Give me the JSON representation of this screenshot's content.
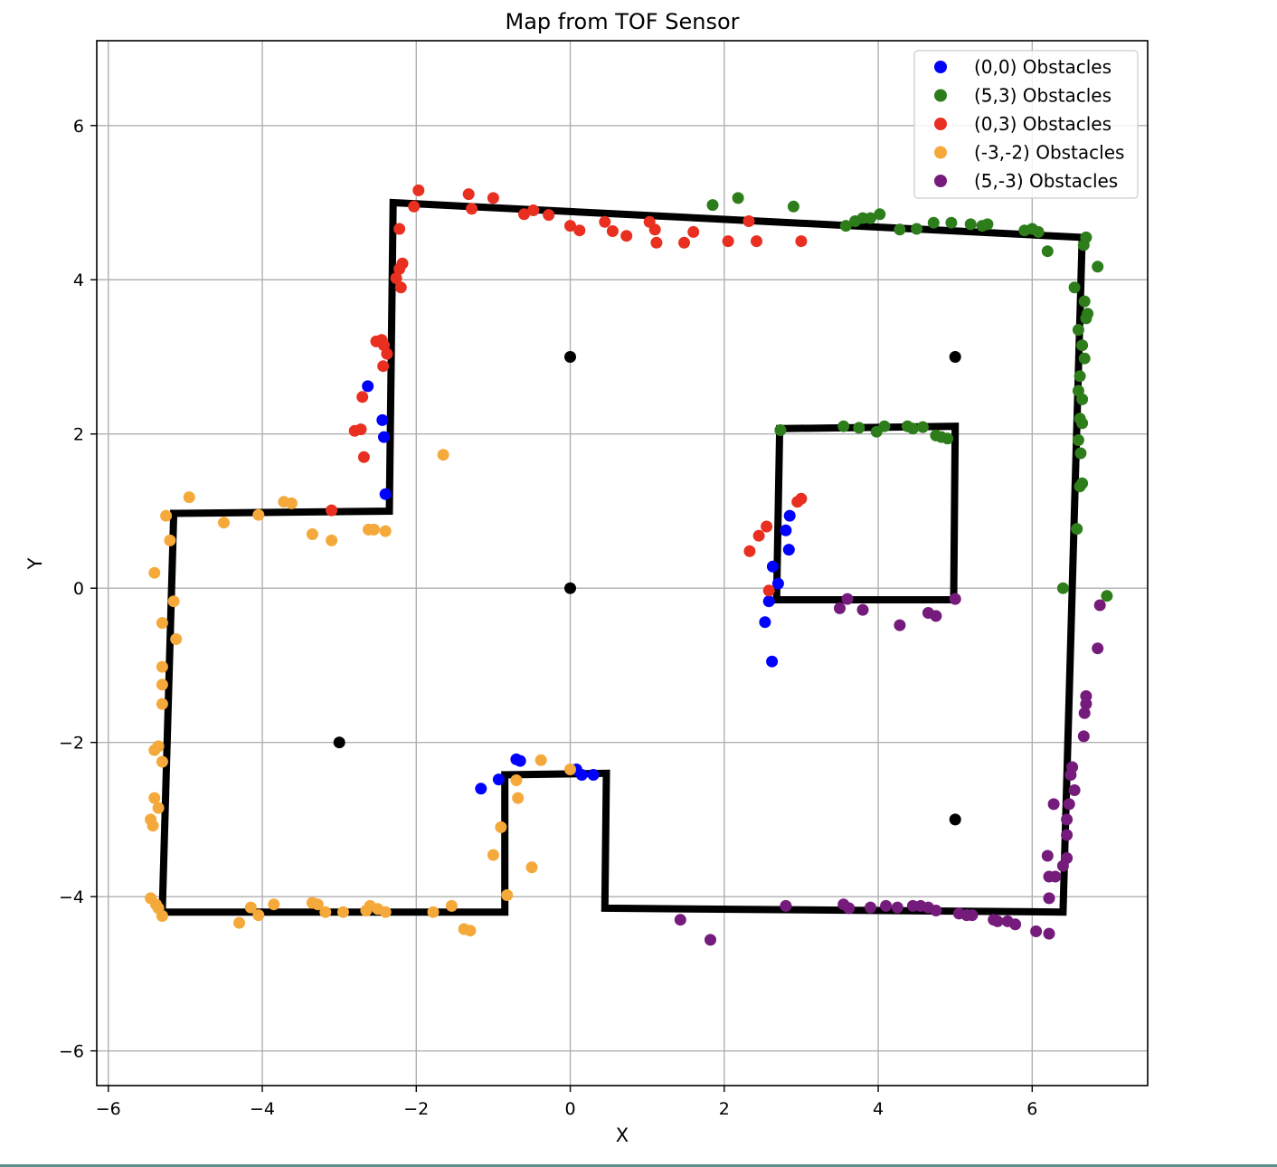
{
  "chart_data": {
    "type": "scatter",
    "title": "Map from TOF Sensor",
    "xlabel": "X",
    "ylabel": "Y",
    "xlim": [
      -6.15,
      7.5
    ],
    "ylim": [
      -6.45,
      7.1
    ],
    "xticks": [
      -6,
      -4,
      -2,
      0,
      2,
      4,
      6
    ],
    "yticks": [
      -6,
      -4,
      -2,
      0,
      2,
      4,
      6
    ],
    "xtick_labels": [
      "−6",
      "−4",
      "−2",
      "0",
      "2",
      "4",
      "6"
    ],
    "ytick_labels": [
      "−6",
      "−4",
      "−2",
      "0",
      "2",
      "4",
      "6"
    ],
    "grid": true,
    "legend_position": "upper-right",
    "series": [
      {
        "name": "(0,0) Obstacles",
        "color": "#0000ff",
        "points": [
          [
            -2.63,
            2.62
          ],
          [
            -2.44,
            2.18
          ],
          [
            -2.42,
            1.96
          ],
          [
            -2.4,
            1.22
          ],
          [
            -1.16,
            -2.6
          ],
          [
            -0.93,
            -2.48
          ],
          [
            -0.7,
            -2.22
          ],
          [
            -0.65,
            -2.24
          ],
          [
            0.08,
            -2.35
          ],
          [
            0.15,
            -2.42
          ],
          [
            0.3,
            -2.42
          ],
          [
            2.53,
            -0.44
          ],
          [
            2.58,
            -0.17
          ],
          [
            2.62,
            -0.95
          ],
          [
            2.63,
            0.28
          ],
          [
            2.8,
            0.75
          ],
          [
            2.84,
            0.5
          ],
          [
            2.85,
            0.94
          ],
          [
            2.7,
            0.06
          ]
        ]
      },
      {
        "name": "(5,3) Obstacles",
        "color": "#2e7d1b",
        "points": [
          [
            1.85,
            4.97
          ],
          [
            2.18,
            5.06
          ],
          [
            2.9,
            4.95
          ],
          [
            3.58,
            4.7
          ],
          [
            3.7,
            4.76
          ],
          [
            3.8,
            4.8
          ],
          [
            3.9,
            4.8
          ],
          [
            4.02,
            4.85
          ],
          [
            4.28,
            4.65
          ],
          [
            4.5,
            4.66
          ],
          [
            4.72,
            4.74
          ],
          [
            4.95,
            4.74
          ],
          [
            5.2,
            4.72
          ],
          [
            5.35,
            4.7
          ],
          [
            5.42,
            4.72
          ],
          [
            5.9,
            4.64
          ],
          [
            6.0,
            4.66
          ],
          [
            6.08,
            4.62
          ],
          [
            6.2,
            4.37
          ],
          [
            6.7,
            4.55
          ],
          [
            6.67,
            4.45
          ],
          [
            6.85,
            4.17
          ],
          [
            6.55,
            3.9
          ],
          [
            6.68,
            3.72
          ],
          [
            6.72,
            3.56
          ],
          [
            6.7,
            3.5
          ],
          [
            6.6,
            3.35
          ],
          [
            6.65,
            3.15
          ],
          [
            6.68,
            2.98
          ],
          [
            6.62,
            2.75
          ],
          [
            6.6,
            2.56
          ],
          [
            6.65,
            2.45
          ],
          [
            6.62,
            2.2
          ],
          [
            6.65,
            2.14
          ],
          [
            6.6,
            1.92
          ],
          [
            6.63,
            1.75
          ],
          [
            6.65,
            1.36
          ],
          [
            6.62,
            1.32
          ],
          [
            6.58,
            0.77
          ],
          [
            6.4,
            0.0
          ],
          [
            6.97,
            -0.1
          ],
          [
            2.73,
            2.05
          ],
          [
            3.55,
            2.1
          ],
          [
            3.75,
            2.08
          ],
          [
            3.98,
            2.03
          ],
          [
            4.08,
            2.1
          ],
          [
            4.38,
            2.1
          ],
          [
            4.45,
            2.07
          ],
          [
            4.58,
            2.09
          ],
          [
            4.75,
            1.98
          ],
          [
            4.82,
            1.96
          ],
          [
            4.9,
            1.94
          ]
        ]
      },
      {
        "name": "(0,3) Obstacles",
        "color": "#e82f20",
        "points": [
          [
            -1.97,
            5.16
          ],
          [
            -2.03,
            4.95
          ],
          [
            -1.32,
            5.11
          ],
          [
            -1.28,
            4.92
          ],
          [
            -1.0,
            5.06
          ],
          [
            -0.6,
            4.85
          ],
          [
            -0.48,
            4.9
          ],
          [
            -0.28,
            4.84
          ],
          [
            0.0,
            4.7
          ],
          [
            0.12,
            4.64
          ],
          [
            0.45,
            4.75
          ],
          [
            0.55,
            4.63
          ],
          [
            0.73,
            4.57
          ],
          [
            1.03,
            4.75
          ],
          [
            1.1,
            4.65
          ],
          [
            1.12,
            4.48
          ],
          [
            1.48,
            4.48
          ],
          [
            1.6,
            4.62
          ],
          [
            2.05,
            4.5
          ],
          [
            2.32,
            4.76
          ],
          [
            2.42,
            4.5
          ],
          [
            3.0,
            4.5
          ],
          [
            -2.22,
            4.66
          ],
          [
            -2.18,
            4.21
          ],
          [
            -2.22,
            4.14
          ],
          [
            -2.26,
            4.02
          ],
          [
            -2.2,
            3.9
          ],
          [
            -2.45,
            3.22
          ],
          [
            -2.52,
            3.2
          ],
          [
            -2.42,
            3.15
          ],
          [
            -2.38,
            3.04
          ],
          [
            -2.43,
            2.88
          ],
          [
            -2.7,
            2.48
          ],
          [
            -2.72,
            2.06
          ],
          [
            -2.8,
            2.04
          ],
          [
            -2.68,
            1.7
          ],
          [
            -3.1,
            1.01
          ],
          [
            2.33,
            0.48
          ],
          [
            2.45,
            0.68
          ],
          [
            2.55,
            0.8
          ],
          [
            2.58,
            -0.03
          ],
          [
            2.95,
            1.12
          ],
          [
            3.0,
            1.16
          ]
        ]
      },
      {
        "name": "(-3,-2) Obstacles",
        "color": "#f4a93a",
        "points": [
          [
            -4.95,
            1.18
          ],
          [
            -5.25,
            0.94
          ],
          [
            -4.5,
            0.85
          ],
          [
            -4.05,
            0.95
          ],
          [
            -3.72,
            1.12
          ],
          [
            -3.62,
            1.1
          ],
          [
            -3.35,
            0.7
          ],
          [
            -3.1,
            0.62
          ],
          [
            -2.62,
            0.76
          ],
          [
            -2.55,
            0.76
          ],
          [
            -2.4,
            0.74
          ],
          [
            -1.65,
            1.73
          ],
          [
            -5.2,
            0.62
          ],
          [
            -5.4,
            0.2
          ],
          [
            -5.15,
            -0.17
          ],
          [
            -5.3,
            -0.45
          ],
          [
            -5.12,
            -0.66
          ],
          [
            -5.3,
            -1.02
          ],
          [
            -5.3,
            -1.25
          ],
          [
            -5.3,
            -1.5
          ],
          [
            -5.35,
            -2.05
          ],
          [
            -5.3,
            -2.25
          ],
          [
            -5.4,
            -2.1
          ],
          [
            -5.4,
            -2.72
          ],
          [
            -5.35,
            -2.85
          ],
          [
            -5.45,
            -3.0
          ],
          [
            -5.42,
            -3.08
          ],
          [
            -5.45,
            -4.02
          ],
          [
            -5.38,
            -4.1
          ],
          [
            -5.35,
            -4.15
          ],
          [
            -5.3,
            -4.25
          ],
          [
            -4.3,
            -4.34
          ],
          [
            -4.15,
            -4.14
          ],
          [
            -4.05,
            -4.24
          ],
          [
            -3.85,
            -4.1
          ],
          [
            -3.35,
            -4.08
          ],
          [
            -3.28,
            -4.1
          ],
          [
            -3.18,
            -4.2
          ],
          [
            -2.95,
            -4.2
          ],
          [
            -2.65,
            -4.18
          ],
          [
            -2.6,
            -4.12
          ],
          [
            -2.5,
            -4.16
          ],
          [
            -2.4,
            -4.2
          ],
          [
            -1.78,
            -4.2
          ],
          [
            -1.54,
            -4.12
          ],
          [
            -1.38,
            -4.42
          ],
          [
            -1.3,
            -4.44
          ],
          [
            -1.0,
            -3.46
          ],
          [
            -0.9,
            -3.1
          ],
          [
            -0.82,
            -3.98
          ],
          [
            -0.68,
            -2.72
          ],
          [
            -0.7,
            -2.49
          ],
          [
            -0.5,
            -3.62
          ],
          [
            -0.38,
            -2.23
          ],
          [
            0.0,
            -2.35
          ]
        ]
      },
      {
        "name": "(5,-3) Obstacles",
        "color": "#741b7b",
        "points": [
          [
            3.5,
            -0.26
          ],
          [
            3.6,
            -0.14
          ],
          [
            3.8,
            -0.28
          ],
          [
            4.28,
            -0.48
          ],
          [
            4.65,
            -0.32
          ],
          [
            4.75,
            -0.36
          ],
          [
            5.0,
            -0.14
          ],
          [
            1.43,
            -4.3
          ],
          [
            1.82,
            -4.56
          ],
          [
            2.8,
            -4.12
          ],
          [
            3.55,
            -4.1
          ],
          [
            3.62,
            -4.15
          ],
          [
            3.9,
            -4.14
          ],
          [
            4.1,
            -4.12
          ],
          [
            4.25,
            -4.14
          ],
          [
            4.45,
            -4.12
          ],
          [
            4.55,
            -4.12
          ],
          [
            4.65,
            -4.14
          ],
          [
            4.75,
            -4.18
          ],
          [
            5.05,
            -4.22
          ],
          [
            5.15,
            -4.24
          ],
          [
            5.22,
            -4.24
          ],
          [
            5.5,
            -4.3
          ],
          [
            5.55,
            -4.32
          ],
          [
            5.68,
            -4.32
          ],
          [
            5.78,
            -4.36
          ],
          [
            6.05,
            -4.45
          ],
          [
            6.22,
            -4.48
          ],
          [
            6.2,
            -3.47
          ],
          [
            6.22,
            -3.74
          ],
          [
            6.22,
            -4.02
          ],
          [
            6.3,
            -3.74
          ],
          [
            6.28,
            -2.8
          ],
          [
            6.4,
            -3.6
          ],
          [
            6.45,
            -3.0
          ],
          [
            6.45,
            -3.2
          ],
          [
            6.48,
            -2.8
          ],
          [
            6.5,
            -2.42
          ],
          [
            6.52,
            -2.32
          ],
          [
            6.55,
            -2.62
          ],
          [
            6.7,
            -1.4
          ],
          [
            6.7,
            -1.5
          ],
          [
            6.68,
            -1.62
          ],
          [
            6.67,
            -1.92
          ],
          [
            6.85,
            -0.78
          ],
          [
            6.88,
            -0.22
          ],
          [
            6.45,
            -3.5
          ]
        ]
      },
      {
        "name": "",
        "color": "#000000",
        "points": [
          [
            0,
            3
          ],
          [
            5,
            3
          ],
          [
            0,
            0
          ],
          [
            -3,
            -2
          ],
          [
            5,
            -3
          ]
        ]
      }
    ],
    "map_walls": [
      [
        [
          -5.15,
          0.97
        ],
        [
          -2.35,
          1.0
        ],
        [
          -2.3,
          5.0
        ],
        [
          6.65,
          4.55
        ],
        [
          6.4,
          -4.2
        ],
        [
          0.45,
          -4.15
        ],
        [
          0.47,
          -2.4
        ],
        [
          -0.85,
          -2.42
        ],
        [
          -0.85,
          -4.2
        ],
        [
          -5.3,
          -4.2
        ],
        [
          -5.15,
          0.97
        ]
      ],
      [
        [
          2.72,
          2.07
        ],
        [
          5.0,
          2.1
        ],
        [
          4.98,
          -0.15
        ],
        [
          2.68,
          -0.15
        ],
        [
          2.72,
          2.07
        ]
      ]
    ]
  }
}
